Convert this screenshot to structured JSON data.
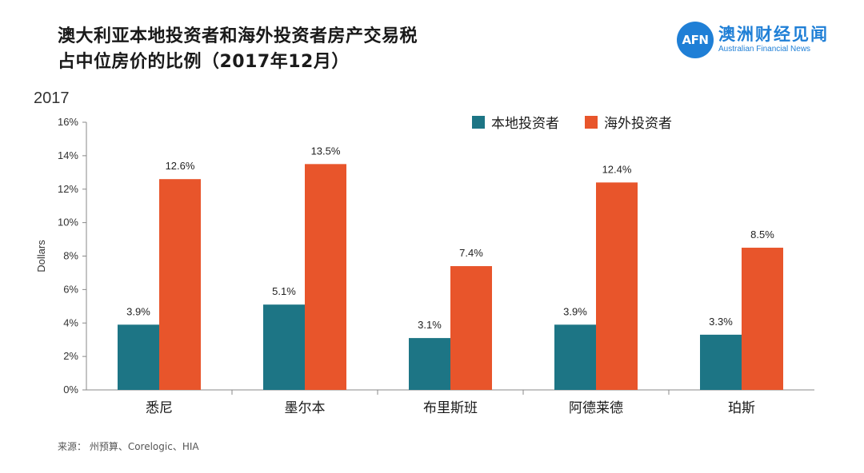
{
  "title_line1": "澳大利亚本地投资者和海外投资者房产交易税",
  "title_line2": "占中位房价的比例（2017年12月）",
  "logo": {
    "mark": "AFN",
    "cn": "澳洲财经见闻",
    "en": "Australian Financial News"
  },
  "year_label": "2017",
  "source": "来源： 州预算、Corelogic、HIA",
  "colors": {
    "local": "#1d7585",
    "foreign": "#e8552b"
  },
  "chart_data": {
    "type": "bar",
    "ylabel": "Dollars",
    "ylim": [
      0,
      16
    ],
    "yticks": [
      "0%",
      "2%",
      "4%",
      "6%",
      "8%",
      "10%",
      "12%",
      "14%",
      "16%"
    ],
    "categories": [
      "悉尼",
      "墨尔本",
      "布里斯班",
      "阿德莱德",
      "珀斯"
    ],
    "series": [
      {
        "name": "本地投资者",
        "values": [
          3.9,
          5.1,
          3.1,
          3.9,
          3.3
        ],
        "labels": [
          "3.9%",
          "5.1%",
          "3.1%",
          "3.9%",
          "3.3%"
        ]
      },
      {
        "name": "海外投资者",
        "values": [
          12.6,
          13.5,
          7.4,
          12.4,
          8.5
        ],
        "labels": [
          "12.6%",
          "13.5%",
          "7.4%",
          "12.4%",
          "8.5%"
        ]
      }
    ],
    "legend_position": "top-right",
    "grid": false
  }
}
